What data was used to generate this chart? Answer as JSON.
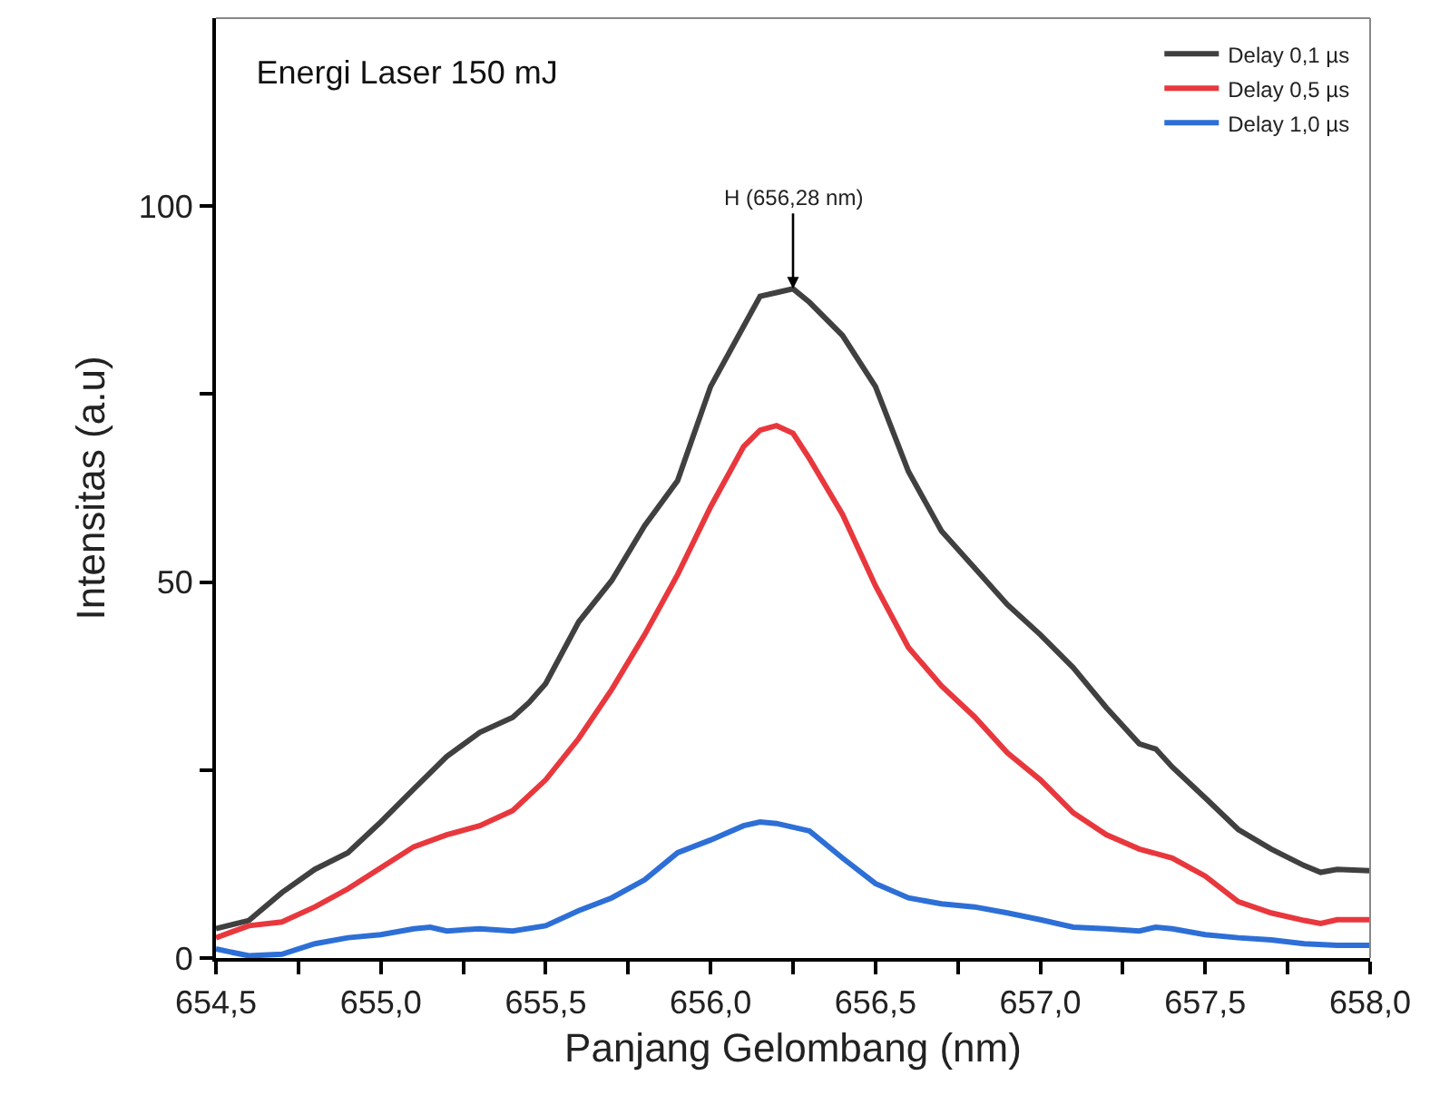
{
  "chart_data": {
    "type": "line",
    "title": "Energi Laser 150 mJ",
    "xlabel": "Panjang Gelombang (nm)",
    "ylabel": "Intensitas (a.u)",
    "xlim": [
      654.5,
      658.0
    ],
    "ylim": [
      0,
      125
    ],
    "xticks": [
      {
        "value": 654.5,
        "label": "654,5"
      },
      {
        "value": 654.75,
        "label": null
      },
      {
        "value": 655.0,
        "label": "655,0"
      },
      {
        "value": 655.25,
        "label": null
      },
      {
        "value": 655.5,
        "label": "655,5"
      },
      {
        "value": 655.75,
        "label": null
      },
      {
        "value": 656.0,
        "label": "656,0"
      },
      {
        "value": 656.25,
        "label": null
      },
      {
        "value": 656.5,
        "label": "656,5"
      },
      {
        "value": 656.75,
        "label": null
      },
      {
        "value": 657.0,
        "label": "657,0"
      },
      {
        "value": 657.25,
        "label": null
      },
      {
        "value": 657.5,
        "label": "657,5"
      },
      {
        "value": 657.75,
        "label": null
      },
      {
        "value": 658.0,
        "label": "658,0"
      }
    ],
    "yticks": [
      0,
      {
        "value": 25,
        "label": null
      },
      50,
      {
        "value": 75,
        "label": null
      },
      100
    ],
    "grid": false,
    "legend": "top right",
    "line_style": "solid",
    "marker": "none",
    "annotations": [
      {
        "text": "H (656,28 nm)",
        "x": 656.25,
        "y": 89
      }
    ],
    "series": [
      {
        "name": "Delay 0,1 µs",
        "color": "#404040",
        "x": [
          654.5,
          654.6,
          654.7,
          654.8,
          654.9,
          655.0,
          655.1,
          655.2,
          655.3,
          655.4,
          655.45,
          655.5,
          655.6,
          655.7,
          655.8,
          655.9,
          656.0,
          656.1,
          656.15,
          656.2,
          656.25,
          656.3,
          656.4,
          656.5,
          656.6,
          656.7,
          656.8,
          656.9,
          657.0,
          657.1,
          657.2,
          657.3,
          657.35,
          657.4,
          657.5,
          657.6,
          657.7,
          657.8,
          657.85,
          657.9,
          658.0
        ],
        "values": [
          3.9,
          5,
          8.7,
          11.8,
          14,
          18.1,
          22.5,
          26.8,
          30,
          32,
          34,
          36.5,
          44.7,
          50.2,
          57.5,
          63.5,
          76,
          84,
          88,
          88.5,
          89,
          87.2,
          82.8,
          76,
          64.7,
          56.8,
          51.9,
          47,
          43,
          38.6,
          33.3,
          28.5,
          27.8,
          25.4,
          21.3,
          17.1,
          14.5,
          12.3,
          11.4,
          11.8,
          11.6
        ]
      },
      {
        "name": "Delay 0,5 µs",
        "color": "#e8383d",
        "x": [
          654.5,
          654.6,
          654.7,
          654.8,
          654.9,
          655.0,
          655.1,
          655.2,
          655.3,
          655.4,
          655.5,
          655.6,
          655.7,
          655.8,
          655.9,
          656.0,
          656.1,
          656.15,
          656.2,
          656.25,
          656.3,
          656.4,
          656.5,
          656.6,
          656.7,
          656.8,
          656.9,
          657.0,
          657.1,
          657.2,
          657.3,
          657.4,
          657.5,
          657.6,
          657.7,
          657.8,
          657.85,
          657.9,
          658.0
        ],
        "values": [
          2.7,
          4.3,
          4.8,
          6.8,
          9.2,
          12,
          14.8,
          16.4,
          17.6,
          19.6,
          23.7,
          29.2,
          35.7,
          43,
          51,
          60,
          68,
          70.2,
          70.8,
          69.8,
          66.4,
          59,
          49.5,
          41.3,
          36.2,
          32.1,
          27.3,
          23.7,
          19.3,
          16.4,
          14.5,
          13.3,
          10.9,
          7.5,
          6,
          5,
          4.6,
          5.1,
          5.1
        ]
      },
      {
        "name": "Delay 1,0 µs",
        "color": "#2d6fd6",
        "x": [
          654.5,
          654.6,
          654.7,
          654.8,
          654.9,
          655.0,
          655.1,
          655.15,
          655.2,
          655.3,
          655.4,
          655.5,
          655.6,
          655.7,
          655.8,
          655.9,
          656.0,
          656.1,
          656.15,
          656.2,
          656.3,
          656.4,
          656.5,
          656.6,
          656.7,
          656.8,
          656.9,
          657.0,
          657.1,
          657.2,
          657.3,
          657.35,
          657.4,
          657.5,
          657.6,
          657.7,
          657.8,
          657.9,
          658.0
        ],
        "values": [
          1.2,
          0.3,
          0.5,
          1.9,
          2.7,
          3.1,
          3.9,
          4.1,
          3.6,
          3.9,
          3.6,
          4.3,
          6.3,
          8,
          10.4,
          14,
          15.7,
          17.6,
          18.1,
          17.9,
          16.9,
          13.3,
          9.9,
          8,
          7.2,
          6.8,
          6,
          5.1,
          4.1,
          3.9,
          3.6,
          4.1,
          3.9,
          3.1,
          2.7,
          2.4,
          1.9,
          1.7,
          1.7
        ]
      }
    ]
  }
}
